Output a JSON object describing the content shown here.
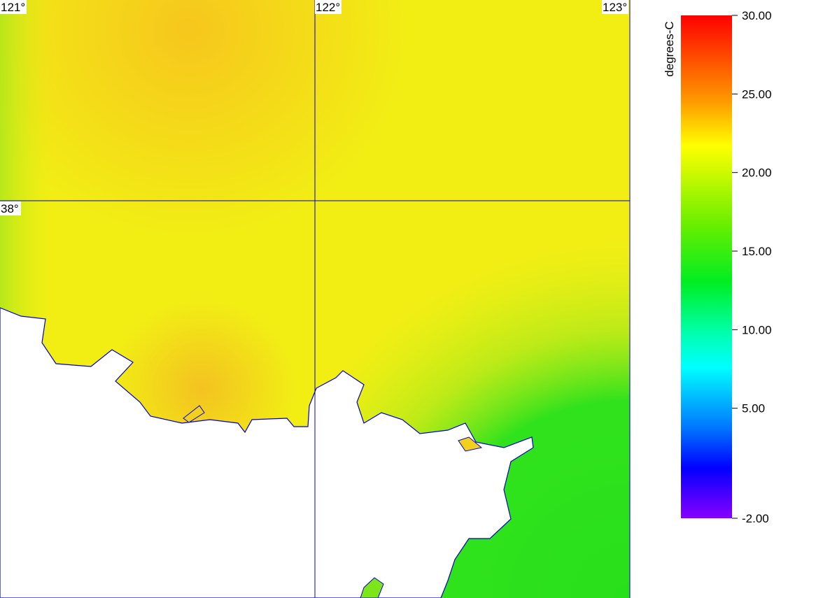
{
  "map": {
    "grid": {
      "lon": [
        {
          "value": 121,
          "label": "121°"
        },
        {
          "value": 122,
          "label": "122°"
        },
        {
          "value": 123,
          "label": "123°"
        }
      ],
      "lat": [
        {
          "value": 38,
          "label": "38°"
        }
      ]
    }
  },
  "colorbar": {
    "title": "degrees-C",
    "lim": [
      -2,
      30
    ],
    "ticks": [
      {
        "value": 30,
        "label": "30.00"
      },
      {
        "value": 25,
        "label": "25.00"
      },
      {
        "value": 20,
        "label": "20.00"
      },
      {
        "value": 15,
        "label": "15.00"
      },
      {
        "value": 10,
        "label": "10.00"
      },
      {
        "value": 5,
        "label": "5.00"
      },
      {
        "value": -2,
        "label": "-2.00"
      }
    ]
  }
}
